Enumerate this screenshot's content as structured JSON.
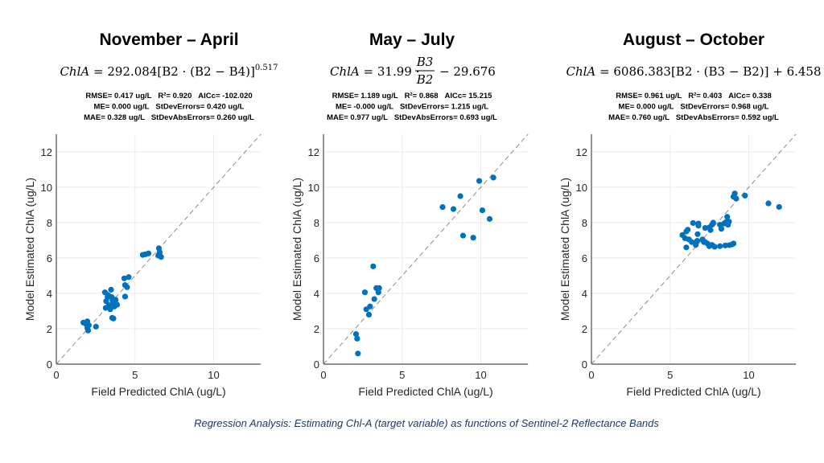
{
  "caption": "Regression Analysis: Estimating Chl-A (target variable) as functions of Sentinel-2 Reflectance Bands",
  "colors": {
    "points": "#0072BD",
    "identity_line": "#8c8c8c",
    "grid": "#ebebeb",
    "caption": "#1f3864"
  },
  "chart_data": [
    {
      "type": "scatter",
      "title": "November – April",
      "formula": {
        "lhs": "ChlA",
        "rhs": " = 292.084[B2 · (B2 − B4)]",
        "exponent": "0.517"
      },
      "stats": [
        [
          "RMSE= 0.417 ug/L",
          "R²= 0.920",
          "AICc= -102.020"
        ],
        [
          "ME= 0.000 ug/L",
          "StDevErrors= 0.420 ug/L"
        ],
        [
          "MAE= 0.328 ug/L",
          "StDevAbsErrors= 0.260 ug/L"
        ]
      ],
      "xlabel": "Field Predicted ChlA (ug/L)",
      "ylabel": "Model Estimated ChlA (ug/L)",
      "xlim": [
        0,
        13
      ],
      "ylim": [
        0,
        13
      ],
      "xticks": [
        "0",
        "5",
        "10"
      ],
      "yticks": [
        "0",
        "2",
        "4",
        "6",
        "8",
        "10",
        "12"
      ],
      "grid": true,
      "identity_line": true,
      "points": [
        [
          1.72,
          2.35
        ],
        [
          1.97,
          2.42
        ],
        [
          2.06,
          2.2
        ],
        [
          2.02,
          1.9
        ],
        [
          1.97,
          2.05
        ],
        [
          2.52,
          2.12
        ],
        [
          1.89,
          2.27
        ],
        [
          3.09,
          4.06
        ],
        [
          3.48,
          4.21
        ],
        [
          3.26,
          3.79
        ],
        [
          3.52,
          3.79
        ],
        [
          3.17,
          3.56
        ],
        [
          3.6,
          3.48
        ],
        [
          3.77,
          3.64
        ],
        [
          3.34,
          3.33
        ],
        [
          3.14,
          3.18
        ],
        [
          3.86,
          3.36
        ],
        [
          3.43,
          3.1
        ],
        [
          3.69,
          3.26
        ],
        [
          3.55,
          2.62
        ],
        [
          3.63,
          2.58
        ],
        [
          3.29,
          3.91
        ],
        [
          3.57,
          3.61
        ],
        [
          4.37,
          3.82
        ],
        [
          4.37,
          4.47
        ],
        [
          4.5,
          4.35
        ],
        [
          4.32,
          4.85
        ],
        [
          4.6,
          4.92
        ],
        [
          5.49,
          6.18
        ],
        [
          5.66,
          6.21
        ],
        [
          5.86,
          6.26
        ],
        [
          6.52,
          6.55
        ],
        [
          6.57,
          6.33
        ],
        [
          6.66,
          6.06
        ],
        [
          6.48,
          6.14
        ],
        [
          6.55,
          6.24
        ]
      ]
    },
    {
      "type": "scatter",
      "title": "May – July",
      "formula": {
        "lhs": "ChlA",
        "mid": " = 31.99 ·",
        "numerator": "B3",
        "denominator": "B2",
        "rhs": "− 29.676"
      },
      "stats": [
        [
          "RMSE= 1.189 ug/L",
          "R²= 0.868",
          "AICc= 15.215"
        ],
        [
          "ME= -0.000 ug/L",
          "StDevErrors= 1.215 ug/L"
        ],
        [
          "MAE= 0.977 ug/L",
          "StDevAbsErrors= 0.693 ug/L"
        ]
      ],
      "xlabel": "Field Predicted ChlA (ug/L)",
      "ylabel": "Model Estimated ChlA (ug/L)",
      "xlim": [
        0,
        13
      ],
      "ylim": [
        0,
        13
      ],
      "xticks": [
        "0",
        "5",
        "10"
      ],
      "yticks": [
        "0",
        "2",
        "4",
        "6",
        "8",
        "10",
        "12"
      ],
      "grid": true,
      "identity_line": true,
      "points": [
        [
          9.9,
          10.36
        ],
        [
          10.8,
          10.55
        ],
        [
          8.7,
          9.5
        ],
        [
          7.57,
          8.88
        ],
        [
          8.26,
          8.77
        ],
        [
          10.1,
          8.7
        ],
        [
          10.56,
          8.21
        ],
        [
          8.87,
          7.27
        ],
        [
          9.52,
          7.15
        ],
        [
          3.16,
          5.53
        ],
        [
          2.63,
          4.06
        ],
        [
          3.36,
          4.3
        ],
        [
          3.54,
          4.3
        ],
        [
          3.49,
          4.06
        ],
        [
          3.23,
          3.68
        ],
        [
          2.72,
          3.1
        ],
        [
          2.96,
          3.26
        ],
        [
          2.89,
          2.8
        ],
        [
          2.07,
          1.7
        ],
        [
          2.14,
          1.44
        ],
        [
          2.19,
          0.6
        ]
      ]
    },
    {
      "type": "scatter",
      "title": "August – October",
      "formula": {
        "lhs": "ChlA",
        "rhs": " = 6086.383[B2 · (B3 − B2)] + 6.458"
      },
      "stats": [
        [
          "RMSE= 0.961 ug/L",
          "R²= 0.403",
          "AICc= 0.338"
        ],
        [
          "ME= 0.000 ug/L",
          "StDevErrors= 0.968 ug/L"
        ],
        [
          "MAE= 0.760 ug/L",
          "StDevAbsErrors= 0.592 ug/L"
        ]
      ],
      "xlabel": "Field Predicted ChlA (ug/L)",
      "ylabel": "Model Estimated ChlA (ug/L)",
      "xlim": [
        0,
        13
      ],
      "ylim": [
        0,
        13
      ],
      "xticks": [
        "0",
        "5",
        "10"
      ],
      "yticks": [
        "0",
        "2",
        "4",
        "6",
        "8",
        "10",
        "12"
      ],
      "grid": true,
      "identity_line": true,
      "points": [
        [
          9.11,
          9.65
        ],
        [
          9.03,
          9.47
        ],
        [
          9.2,
          9.36
        ],
        [
          9.76,
          9.53
        ],
        [
          11.25,
          9.09
        ],
        [
          11.93,
          8.89
        ],
        [
          8.63,
          8.33
        ],
        [
          6.46,
          7.98
        ],
        [
          6.8,
          7.95
        ],
        [
          6.8,
          7.83
        ],
        [
          7.23,
          7.7
        ],
        [
          7.49,
          7.73
        ],
        [
          7.66,
          7.88
        ],
        [
          7.74,
          8.0
        ],
        [
          7.57,
          7.58
        ],
        [
          8.26,
          7.65
        ],
        [
          8.43,
          7.95
        ],
        [
          8.68,
          7.88
        ],
        [
          8.56,
          8.03
        ],
        [
          8.17,
          7.88
        ],
        [
          8.74,
          8.06
        ],
        [
          5.78,
          7.3
        ],
        [
          6.03,
          7.5
        ],
        [
          6.12,
          7.6
        ],
        [
          5.95,
          7.12
        ],
        [
          6.2,
          7.05
        ],
        [
          6.75,
          7.35
        ],
        [
          6.38,
          6.9
        ],
        [
          6.72,
          6.97
        ],
        [
          7.06,
          7.05
        ],
        [
          7.23,
          6.9
        ],
        [
          7.37,
          6.82
        ],
        [
          6.03,
          6.6
        ],
        [
          6.63,
          6.74
        ],
        [
          7.66,
          6.74
        ],
        [
          7.83,
          6.64
        ],
        [
          8.17,
          6.67
        ],
        [
          8.51,
          6.71
        ],
        [
          8.77,
          6.73
        ],
        [
          8.94,
          6.77
        ],
        [
          9.03,
          6.82
        ],
        [
          7.49,
          6.67
        ],
        [
          7.15,
          6.9
        ]
      ]
    }
  ]
}
